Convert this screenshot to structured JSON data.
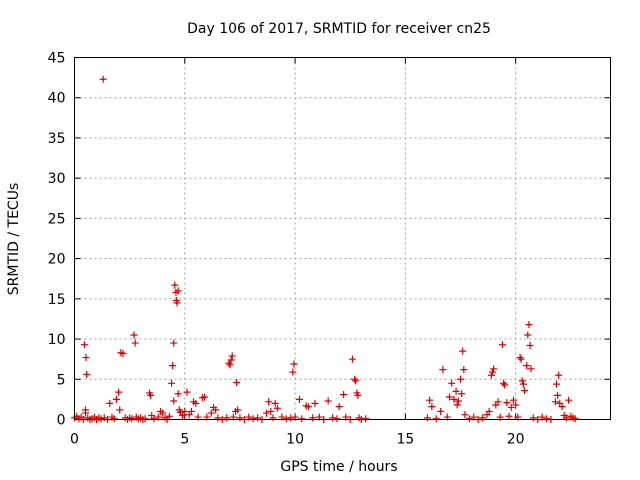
{
  "chart_data": {
    "type": "scatter",
    "title": "Day 106 of 2017, SRMTID for receiver cn25",
    "xlabel": "GPS time / hours",
    "ylabel": "SRMTID / TECUs",
    "xlim": [
      0,
      24.3
    ],
    "ylim": [
      0,
      45
    ],
    "xticks": [
      0,
      5,
      10,
      15,
      20
    ],
    "yticks": [
      0,
      5,
      10,
      15,
      20,
      25,
      30,
      35,
      40,
      45
    ],
    "grid": true,
    "marker": "plus",
    "color": "#dd0000",
    "series": [
      {
        "name": "SRMTID",
        "points": [
          [
            0.0,
            0.2
          ],
          [
            0.1,
            0.4
          ],
          [
            0.2,
            0.1
          ],
          [
            0.3,
            0.3
          ],
          [
            0.4,
            0.0
          ],
          [
            0.45,
            9.3
          ],
          [
            0.5,
            0.8
          ],
          [
            0.5,
            1.2
          ],
          [
            0.52,
            7.7
          ],
          [
            0.55,
            5.6
          ],
          [
            0.6,
            0.2
          ],
          [
            0.7,
            0.0
          ],
          [
            0.8,
            0.1
          ],
          [
            0.9,
            0.3
          ],
          [
            1.0,
            0.0
          ],
          [
            1.1,
            0.2
          ],
          [
            1.2,
            0.1
          ],
          [
            1.3,
            42.3
          ],
          [
            1.35,
            0.2
          ],
          [
            1.5,
            0.0
          ],
          [
            1.6,
            2.0
          ],
          [
            1.7,
            0.3
          ],
          [
            1.8,
            0.1
          ],
          [
            1.9,
            2.5
          ],
          [
            2.0,
            3.4
          ],
          [
            2.05,
            1.2
          ],
          [
            2.1,
            8.3
          ],
          [
            2.2,
            8.2
          ],
          [
            2.3,
            0.2
          ],
          [
            2.4,
            0.0
          ],
          [
            2.5,
            0.2
          ],
          [
            2.6,
            0.1
          ],
          [
            2.7,
            10.5
          ],
          [
            2.75,
            9.5
          ],
          [
            2.8,
            0.3
          ],
          [
            2.9,
            0.1
          ],
          [
            3.0,
            0.2
          ],
          [
            3.1,
            0.0
          ],
          [
            3.2,
            0.1
          ],
          [
            3.4,
            3.3
          ],
          [
            3.45,
            3.0
          ],
          [
            3.5,
            0.5
          ],
          [
            3.6,
            0.1
          ],
          [
            3.8,
            0.3
          ],
          [
            3.9,
            1.0
          ],
          [
            4.0,
            0.8
          ],
          [
            4.1,
            0.2
          ],
          [
            4.2,
            0.0
          ],
          [
            4.3,
            0.4
          ],
          [
            4.4,
            4.5
          ],
          [
            4.45,
            6.7
          ],
          [
            4.5,
            9.5
          ],
          [
            4.5,
            2.3
          ],
          [
            4.55,
            16.7
          ],
          [
            4.6,
            15.8
          ],
          [
            4.62,
            14.8
          ],
          [
            4.65,
            14.5
          ],
          [
            4.7,
            16.0
          ],
          [
            4.7,
            3.2
          ],
          [
            4.75,
            1.2
          ],
          [
            4.8,
            0.9
          ],
          [
            4.9,
            0.5
          ],
          [
            5.0,
            1.0
          ],
          [
            5.1,
            3.4
          ],
          [
            5.2,
            0.6
          ],
          [
            5.3,
            1.0
          ],
          [
            5.4,
            2.2
          ],
          [
            5.5,
            2.0
          ],
          [
            5.6,
            0.3
          ],
          [
            5.8,
            2.7
          ],
          [
            5.9,
            2.8
          ],
          [
            6.0,
            0.3
          ],
          [
            6.2,
            0.8
          ],
          [
            6.3,
            1.5
          ],
          [
            6.4,
            1.2
          ],
          [
            6.5,
            0.2
          ],
          [
            6.7,
            0.0
          ],
          [
            6.9,
            0.2
          ],
          [
            7.0,
            7.0
          ],
          [
            7.05,
            6.8
          ],
          [
            7.1,
            7.4
          ],
          [
            7.15,
            7.9
          ],
          [
            7.2,
            0.3
          ],
          [
            7.3,
            1.0
          ],
          [
            7.35,
            4.6
          ],
          [
            7.4,
            1.2
          ],
          [
            7.5,
            0.2
          ],
          [
            7.7,
            0.0
          ],
          [
            7.9,
            0.3
          ],
          [
            8.1,
            0.1
          ],
          [
            8.3,
            0.2
          ],
          [
            8.5,
            0.0
          ],
          [
            8.7,
            0.8
          ],
          [
            8.8,
            2.2
          ],
          [
            8.9,
            1.0
          ],
          [
            9.0,
            0.2
          ],
          [
            9.1,
            2.0
          ],
          [
            9.2,
            1.4
          ],
          [
            9.4,
            0.3
          ],
          [
            9.6,
            0.1
          ],
          [
            9.8,
            0.2
          ],
          [
            9.9,
            5.9
          ],
          [
            9.95,
            6.9
          ],
          [
            10.0,
            0.3
          ],
          [
            10.2,
            2.5
          ],
          [
            10.3,
            0.1
          ],
          [
            10.5,
            1.7
          ],
          [
            10.6,
            1.6
          ],
          [
            10.8,
            0.2
          ],
          [
            10.9,
            2.0
          ],
          [
            11.1,
            0.3
          ],
          [
            11.3,
            0.0
          ],
          [
            11.5,
            2.3
          ],
          [
            11.7,
            0.2
          ],
          [
            11.9,
            0.1
          ],
          [
            12.0,
            1.6
          ],
          [
            12.2,
            3.1
          ],
          [
            12.3,
            0.3
          ],
          [
            12.5,
            0.0
          ],
          [
            12.6,
            7.5
          ],
          [
            12.7,
            5.0
          ],
          [
            12.75,
            4.8
          ],
          [
            12.8,
            3.3
          ],
          [
            12.85,
            3.0
          ],
          [
            12.9,
            0.2
          ],
          [
            13.0,
            0.0
          ],
          [
            13.2,
            0.1
          ],
          [
            16.0,
            0.2
          ],
          [
            16.1,
            2.4
          ],
          [
            16.2,
            1.6
          ],
          [
            16.4,
            0.1
          ],
          [
            16.6,
            1.0
          ],
          [
            16.7,
            6.2
          ],
          [
            16.9,
            0.3
          ],
          [
            17.0,
            2.8
          ],
          [
            17.1,
            4.5
          ],
          [
            17.2,
            2.5
          ],
          [
            17.3,
            3.5
          ],
          [
            17.35,
            1.8
          ],
          [
            17.4,
            2.3
          ],
          [
            17.5,
            5.0
          ],
          [
            17.55,
            3.2
          ],
          [
            17.6,
            8.5
          ],
          [
            17.65,
            6.2
          ],
          [
            17.7,
            0.6
          ],
          [
            17.9,
            0.1
          ],
          [
            18.1,
            0.3
          ],
          [
            18.3,
            0.0
          ],
          [
            18.5,
            0.2
          ],
          [
            18.7,
            0.6
          ],
          [
            18.8,
            1.0
          ],
          [
            18.9,
            5.5
          ],
          [
            18.95,
            5.9
          ],
          [
            19.0,
            6.3
          ],
          [
            19.1,
            1.8
          ],
          [
            19.2,
            2.2
          ],
          [
            19.3,
            0.3
          ],
          [
            19.4,
            9.3
          ],
          [
            19.45,
            4.5
          ],
          [
            19.5,
            4.3
          ],
          [
            19.6,
            2.1
          ],
          [
            19.7,
            0.4
          ],
          [
            19.8,
            1.5
          ],
          [
            19.9,
            2.4
          ],
          [
            20.0,
            1.8
          ],
          [
            20.1,
            0.3
          ],
          [
            20.2,
            7.7
          ],
          [
            20.25,
            7.5
          ],
          [
            20.3,
            4.8
          ],
          [
            20.35,
            4.4
          ],
          [
            20.4,
            3.6
          ],
          [
            20.5,
            6.7
          ],
          [
            20.55,
            10.5
          ],
          [
            20.6,
            11.8
          ],
          [
            20.65,
            9.2
          ],
          [
            20.7,
            6.3
          ],
          [
            20.8,
            0.2
          ],
          [
            21.0,
            0.0
          ],
          [
            21.2,
            0.3
          ],
          [
            21.4,
            0.1
          ],
          [
            21.6,
            0.0
          ],
          [
            21.8,
            2.2
          ],
          [
            21.85,
            4.4
          ],
          [
            21.9,
            3.0
          ],
          [
            21.95,
            5.5
          ],
          [
            22.0,
            2.0
          ],
          [
            22.1,
            1.6
          ],
          [
            22.2,
            0.5
          ],
          [
            22.3,
            0.2
          ],
          [
            22.4,
            2.4
          ],
          [
            22.5,
            0.4
          ],
          [
            22.6,
            0.2
          ],
          [
            22.7,
            0.1
          ]
        ]
      }
    ]
  }
}
